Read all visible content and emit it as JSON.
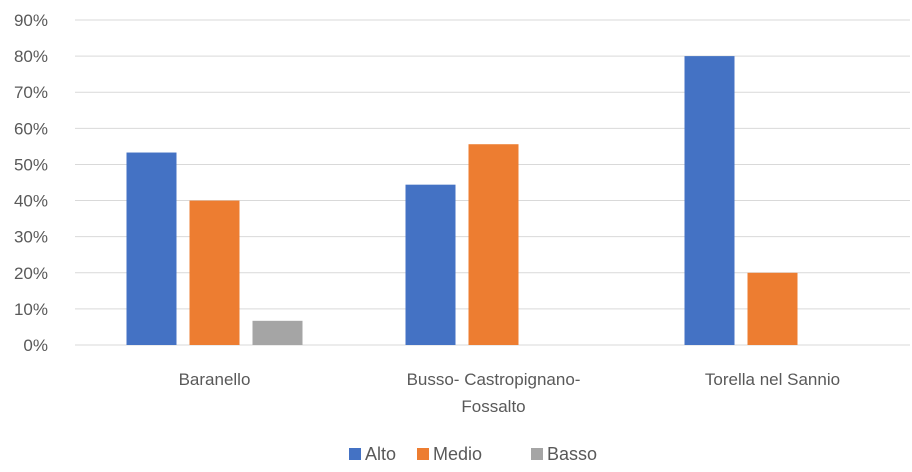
{
  "chart_data": {
    "type": "bar",
    "categories": [
      [
        "Baranello"
      ],
      [
        "Busso- Castropignano-",
        "Fossalto"
      ],
      [
        "Torella nel Sannio"
      ]
    ],
    "series": [
      {
        "name": "Alto",
        "values": [
          53.3,
          44.4,
          80
        ],
        "color": "#4472c4"
      },
      {
        "name": "Medio",
        "values": [
          40,
          55.6,
          20
        ],
        "color": "#ed7d31"
      },
      {
        "name": "Basso",
        "values": [
          6.7,
          0,
          0
        ],
        "color": "#a5a5a5"
      }
    ],
    "y_ticks": [
      "0%",
      "10%",
      "20%",
      "30%",
      "40%",
      "50%",
      "60%",
      "70%",
      "80%",
      "90%"
    ],
    "ylim": [
      0,
      90
    ],
    "grid": true,
    "legend_position": "bottom"
  }
}
